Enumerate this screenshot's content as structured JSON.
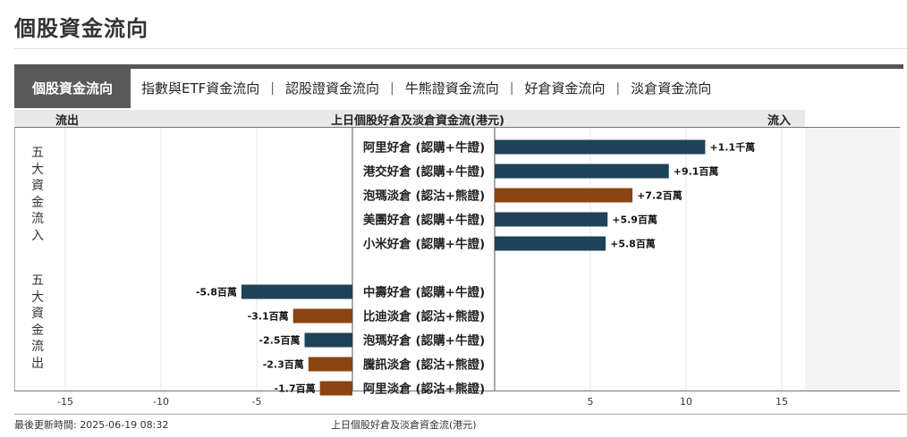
{
  "page": {
    "title": "個股資金流向"
  },
  "tabs": [
    {
      "label": "個股資金流向",
      "active": true
    },
    {
      "label": "指數與ETF資金流向",
      "active": false
    },
    {
      "label": "認股證資金流向",
      "active": false
    },
    {
      "label": "牛熊證資金流向",
      "active": false
    },
    {
      "label": "好倉資金流向",
      "active": false
    },
    {
      "label": "淡倉資金流向",
      "active": false
    }
  ],
  "tab_separator": "|",
  "header": {
    "left": "流出",
    "center": "上日個股好倉及淡倉資金流(港元)",
    "right": "流入"
  },
  "side_labels": {
    "inflow": "五大資金流入",
    "outflow": "五大資金流出"
  },
  "footer": {
    "updated": "最後更新時間: 2025-06-19 08:32",
    "caption": "上日個股好倉及淡倉資金流(港元)"
  },
  "colors": {
    "long": "#1e4258",
    "short": "#8b4513"
  },
  "chart_data": {
    "type": "bar",
    "orientation": "horizontal-diverging",
    "title": "上日個股好倉及淡倉資金流(港元)",
    "unit": "百萬",
    "xlim": [
      -18,
      18
    ],
    "ticks": [
      -15,
      -10,
      -5,
      5,
      10,
      15
    ],
    "grid": true,
    "rows": [
      {
        "category": "阿里好倉 (認購+牛證)",
        "value": 11,
        "label": "+1.1千萬",
        "type": "long"
      },
      {
        "category": "港交好倉 (認購+牛證)",
        "value": 9.1,
        "label": "+9.1百萬",
        "type": "long"
      },
      {
        "category": "泡瑪淡倉 (認沽+熊證)",
        "value": 7.2,
        "label": "+7.2百萬",
        "type": "short"
      },
      {
        "category": "美團好倉 (認購+牛證)",
        "value": 5.9,
        "label": "+5.9百萬",
        "type": "long"
      },
      {
        "category": "小米好倉 (認購+牛證)",
        "value": 5.8,
        "label": "+5.8百萬",
        "type": "long"
      },
      {
        "category": "中壽好倉 (認購+牛證)",
        "value": -5.8,
        "label": "-5.8百萬",
        "type": "long"
      },
      {
        "category": "比迪淡倉 (認沽+熊證)",
        "value": -3.1,
        "label": "-3.1百萬",
        "type": "short"
      },
      {
        "category": "泡瑪好倉 (認購+牛證)",
        "value": -2.5,
        "label": "-2.5百萬",
        "type": "long"
      },
      {
        "category": "騰訊淡倉 (認沽+熊證)",
        "value": -2.3,
        "label": "-2.3百萬",
        "type": "short"
      },
      {
        "category": "阿里淡倉 (認沽+熊證)",
        "value": -1.7,
        "label": "-1.7百萬",
        "type": "short"
      }
    ]
  }
}
